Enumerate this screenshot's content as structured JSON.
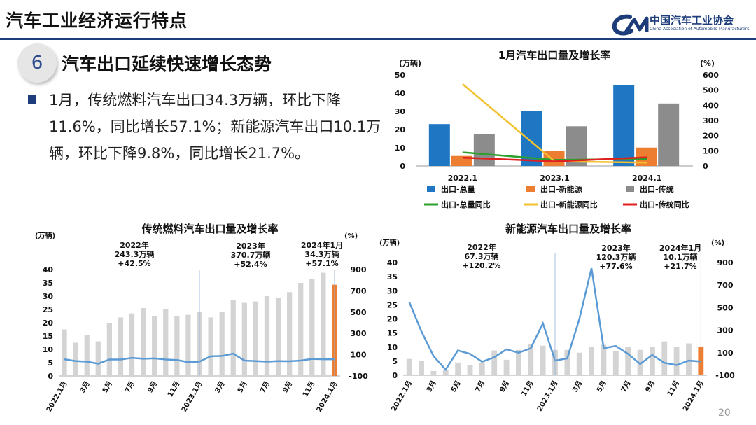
{
  "header": {
    "title": "汽车工业经济运行特点"
  },
  "logo": {
    "cn": "中国汽车工业协会",
    "en": "China Association of Automobile Manufacturers"
  },
  "section": {
    "number": "6",
    "title": "汽车出口延续快速增长态势"
  },
  "paragraph": "1月，传统燃料汽车出口34.3万辆，环比下降11.6%，同比增长57.1%；新能源汽车出口10.1万辆，环比下降9.8%，同比增长21.7%。",
  "page_number": "20",
  "chart_data": [
    {
      "type": "bar",
      "title": "1月汽车出口量及增长率",
      "ylabel_left": "(万辆)",
      "ylabel_right": "(%)",
      "ylim": [
        0,
        50
      ],
      "ylim_right": [
        0,
        600
      ],
      "yticks": [
        0,
        10,
        20,
        30,
        40,
        50
      ],
      "yticks_right": [
        0,
        100,
        200,
        300,
        400,
        500,
        600
      ],
      "categories": [
        "2022.1",
        "2023.1",
        "2024.1"
      ],
      "series": [
        {
          "name": "出口-总量",
          "kind": "bar",
          "color": "#1f77c4",
          "values": [
            23,
            30,
            44.4
          ]
        },
        {
          "name": "出口-新能源",
          "kind": "bar",
          "color": "#ed7d31",
          "values": [
            5.5,
            8.3,
            10.1
          ]
        },
        {
          "name": "出口-传统",
          "kind": "bar",
          "color": "#8c8c8c",
          "values": [
            17.5,
            21.8,
            34.3
          ]
        },
        {
          "name": "出口-总量同比",
          "kind": "line",
          "color": "#2ca02c",
          "values": [
            90,
            40,
            47
          ]
        },
        {
          "name": "出口-新能源同比",
          "kind": "line",
          "color": "#f2c12e",
          "values": [
            540,
            30,
            22
          ]
        },
        {
          "name": "出口-传统同比",
          "kind": "line",
          "color": "#e02020",
          "values": [
            55,
            30,
            57
          ]
        }
      ]
    },
    {
      "type": "bar",
      "title": "传统燃料汽车出口量及增长率",
      "ylabel_left": "(万辆)",
      "ylabel_right": "(%)",
      "ylim": [
        0,
        40
      ],
      "ylim_right": [
        -100,
        900
      ],
      "yticks": [
        0,
        5,
        10,
        15,
        20,
        25,
        30,
        35,
        40
      ],
      "yticks_right": [
        -100,
        100,
        300,
        500,
        700,
        900
      ],
      "categories": [
        "2022.1月",
        "",
        "3月",
        "",
        "5月",
        "",
        "7月",
        "",
        "9月",
        "",
        "11月",
        "",
        "2023.1月",
        "",
        "3月",
        "",
        "5月",
        "",
        "7月",
        "",
        "9月",
        "",
        "11月",
        "",
        "2024.1月"
      ],
      "series": [
        {
          "name": "出口量",
          "kind": "bar",
          "color": "#d4d4d4",
          "highlight_color": "#ed7d31",
          "values": [
            17.5,
            12.5,
            15.5,
            13,
            20,
            22,
            23.5,
            25.5,
            22.5,
            25,
            22.5,
            23,
            24,
            22,
            24,
            28.5,
            27.5,
            28,
            30,
            29.5,
            31.5,
            35,
            36.5,
            38.8,
            34.3
          ]
        },
        {
          "name": "同比增长率",
          "kind": "line",
          "color": "#5b9bd5",
          "values": [
            57,
            40,
            35,
            15,
            55,
            55,
            70,
            62,
            65,
            55,
            50,
            30,
            35,
            85,
            88,
            110,
            45,
            40,
            35,
            40,
            38,
            45,
            60,
            57,
            57
          ]
        }
      ],
      "annotations": [
        {
          "year": "2022年",
          "volume": "243.3万辆",
          "growth": "+42.5%"
        },
        {
          "year": "2023年",
          "volume": "370.7万辆",
          "growth": "+52.4%"
        },
        {
          "year": "2024年1月",
          "volume": "34.3万辆",
          "growth": "+57.1%"
        }
      ]
    },
    {
      "type": "bar",
      "title": "新能源汽车出口量及增长率",
      "ylabel_left": "(万辆)",
      "ylabel_right": "(%)",
      "ylim": [
        0,
        40
      ],
      "ylim_right": [
        -100,
        900
      ],
      "yticks": [
        0,
        5,
        10,
        15,
        20,
        25,
        30,
        35,
        40
      ],
      "yticks_right": [
        -100,
        100,
        300,
        500,
        700,
        900
      ],
      "categories": [
        "2022.1月",
        "",
        "3月",
        "",
        "5月",
        "",
        "7月",
        "",
        "9月",
        "",
        "11月",
        "",
        "2023.1月",
        "",
        "3月",
        "",
        "5月",
        "",
        "7月",
        "",
        "9月",
        "",
        "11月",
        "",
        "2024.1月"
      ],
      "series": [
        {
          "name": "出口量",
          "kind": "bar",
          "color": "#d4d4d4",
          "highlight_color": "#ed7d31",
          "values": [
            5.8,
            5,
            1.5,
            1.8,
            4.5,
            3.5,
            4.5,
            8.8,
            5.5,
            9,
            11,
            10.5,
            9,
            9,
            8,
            10,
            10.8,
            8.5,
            10,
            9,
            10,
            12,
            10,
            11.3,
            10.1
          ]
        },
        {
          "name": "同比增长率",
          "kind": "line",
          "color": "#5b9bd5",
          "values": [
            550,
            290,
            70,
            -50,
            120,
            90,
            20,
            60,
            130,
            100,
            140,
            360,
            30,
            50,
            400,
            850,
            140,
            160,
            90,
            0,
            80,
            10,
            -10,
            30,
            22
          ]
        }
      ],
      "annotations": [
        {
          "year": "2022年",
          "volume": "67.3万辆",
          "growth": "+120.2%"
        },
        {
          "year": "2023年",
          "volume": "120.3万辆",
          "growth": "+77.6%"
        },
        {
          "year": "2024年1月",
          "volume": "10.1万辆",
          "growth": "+21.7%"
        }
      ]
    }
  ]
}
